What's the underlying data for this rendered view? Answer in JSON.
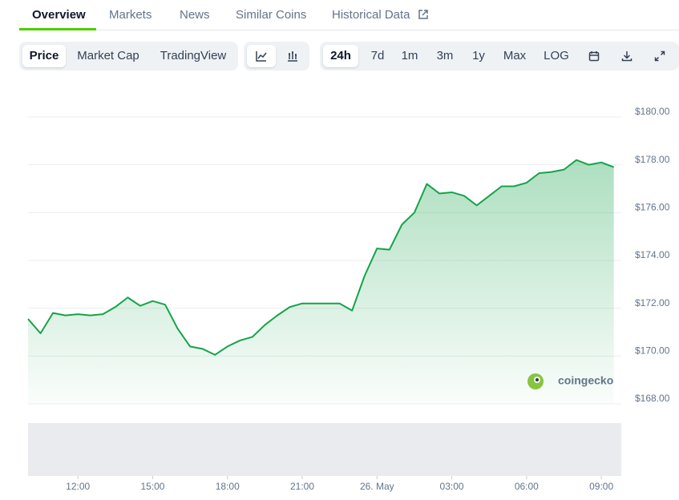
{
  "tabs": [
    "Overview",
    "Markets",
    "News",
    "Similar Coins",
    "Historical Data"
  ],
  "toolbar": {
    "views": [
      "Price",
      "Market Cap",
      "TradingView"
    ],
    "ranges": [
      "24h",
      "7d",
      "1m",
      "3m",
      "1y",
      "Max",
      "LOG"
    ]
  },
  "watermark": "coingecko",
  "chart_data": {
    "type": "line",
    "color": "#16a34a",
    "grid": true,
    "values": [
      171.55,
      170.95,
      171.8,
      171.7,
      171.75,
      171.7,
      171.75,
      172.05,
      172.45,
      172.1,
      172.3,
      172.15,
      171.15,
      170.4,
      170.3,
      170.05,
      170.4,
      170.65,
      170.8,
      171.3,
      171.7,
      172.05,
      172.2,
      172.2,
      172.2,
      172.2,
      171.9,
      173.35,
      174.5,
      174.45,
      175.5,
      176.0,
      177.2,
      176.8,
      176.85,
      176.7,
      176.3,
      176.7,
      177.1,
      177.1,
      177.25,
      177.65,
      177.7,
      177.8,
      178.2,
      178.0,
      178.1,
      177.9
    ],
    "xlim": [
      0,
      47.6
    ],
    "xticks": [
      {
        "value": 4,
        "label": "12:00"
      },
      {
        "value": 10,
        "label": "15:00"
      },
      {
        "value": 16,
        "label": "18:00"
      },
      {
        "value": 22,
        "label": "21:00"
      },
      {
        "value": 28,
        "label": "26. May"
      },
      {
        "value": 34,
        "label": "03:00"
      },
      {
        "value": 40,
        "label": "06:00"
      },
      {
        "value": 46,
        "label": "09:00"
      }
    ],
    "ylim": [
      168,
      180
    ],
    "yticks": [
      {
        "value": 168,
        "label": "$168.00"
      },
      {
        "value": 170,
        "label": "$170.00"
      },
      {
        "value": 172,
        "label": "$172.00"
      },
      {
        "value": 174,
        "label": "$174.00"
      },
      {
        "value": 176,
        "label": "$176.00"
      },
      {
        "value": 178,
        "label": "$178.00"
      },
      {
        "value": 180,
        "label": "$180.00"
      }
    ]
  }
}
